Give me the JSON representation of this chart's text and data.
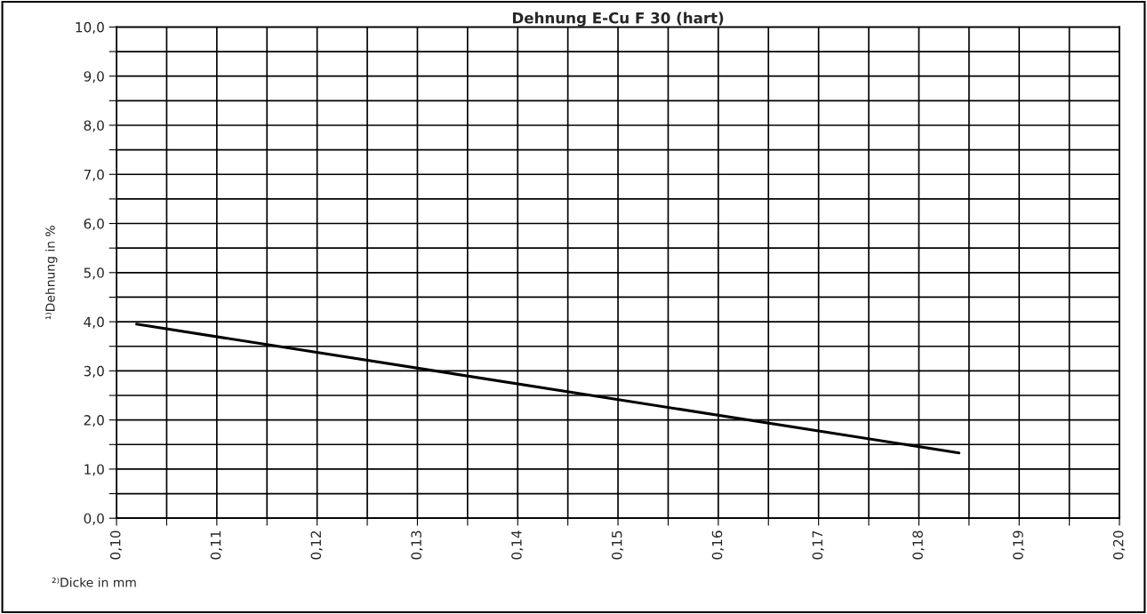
{
  "chart_data": {
    "type": "line",
    "title": "Dehnung E-Cu F 30 (hart)",
    "xlabel": "²⁾Dicke in mm",
    "ylabel": "¹⁾Dehnung in %",
    "x": [
      0.102,
      0.184
    ],
    "series": [
      {
        "color": "#000000",
        "values": [
          3.95,
          1.33
        ]
      }
    ],
    "xlim": [
      0.1,
      0.2
    ],
    "xticks": [
      {
        "value": 0.1,
        "label": "0,10"
      },
      {
        "value": 0.105,
        "label": null
      },
      {
        "value": 0.11,
        "label": "0,11"
      },
      {
        "value": 0.115,
        "label": null
      },
      {
        "value": 0.12,
        "label": "0,12"
      },
      {
        "value": 0.125,
        "label": null
      },
      {
        "value": 0.13,
        "label": "0,13"
      },
      {
        "value": 0.135,
        "label": null
      },
      {
        "value": 0.14,
        "label": "0,14"
      },
      {
        "value": 0.145,
        "label": null
      },
      {
        "value": 0.15,
        "label": "0,15"
      },
      {
        "value": 0.155,
        "label": null
      },
      {
        "value": 0.16,
        "label": "0,16"
      },
      {
        "value": 0.165,
        "label": null
      },
      {
        "value": 0.17,
        "label": "0,17"
      },
      {
        "value": 0.175,
        "label": null
      },
      {
        "value": 0.18,
        "label": "0,18"
      },
      {
        "value": 0.185,
        "label": null
      },
      {
        "value": 0.19,
        "label": "0,19"
      },
      {
        "value": 0.195,
        "label": null
      },
      {
        "value": 0.2,
        "label": "0,20"
      }
    ],
    "ylim": [
      0,
      10
    ],
    "yticks": [
      {
        "value": 0,
        "label": "0,0"
      },
      {
        "value": 0.5,
        "label": null
      },
      {
        "value": 1,
        "label": "1,0"
      },
      {
        "value": 1.5,
        "label": null
      },
      {
        "value": 2,
        "label": "2,0"
      },
      {
        "value": 2.5,
        "label": null
      },
      {
        "value": 3,
        "label": "3,0"
      },
      {
        "value": 3.5,
        "label": null
      },
      {
        "value": 4,
        "label": "4,0"
      },
      {
        "value": 4.5,
        "label": null
      },
      {
        "value": 5,
        "label": "5,0"
      },
      {
        "value": 5.5,
        "label": null
      },
      {
        "value": 6,
        "label": "6,0"
      },
      {
        "value": 6.5,
        "label": null
      },
      {
        "value": 7,
        "label": "7,0"
      },
      {
        "value": 7.5,
        "label": null
      },
      {
        "value": 8,
        "label": "8,0"
      },
      {
        "value": 8.5,
        "label": null
      },
      {
        "value": 9,
        "label": "9,0"
      },
      {
        "value": 9.5,
        "label": null
      },
      {
        "value": 10,
        "label": "10,0"
      }
    ],
    "grid": true,
    "marker": "none",
    "line_style": "solid",
    "legend": false
  }
}
